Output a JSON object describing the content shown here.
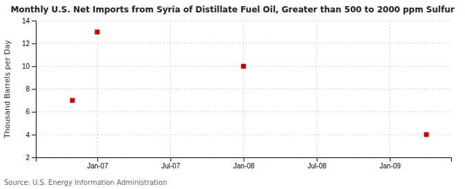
{
  "chart_data": {
    "type": "scatter",
    "title": "Monthly U.S. Net Imports from Syria of Distillate Fuel Oil, Greater than 500 to 2000 ppm Sulfur",
    "y_label": "Thousand Barrels per Day",
    "source": "Source: U.S. Energy Information Administration",
    "x": [
      2006.83,
      2007.0,
      2008.0,
      2009.25
    ],
    "values": [
      7,
      13,
      10,
      4
    ],
    "color": "#cc0000",
    "marker": "square",
    "xlim": [
      2006.58,
      2009.42
    ],
    "xticks": [
      {
        "value": 2007.0,
        "label": "Jan-07"
      },
      {
        "value": 2007.5,
        "label": "Jul-07"
      },
      {
        "value": 2008.0,
        "label": "Jan-08"
      },
      {
        "value": 2008.5,
        "label": "Jul-08"
      },
      {
        "value": 2009.0,
        "label": "Jan-09"
      }
    ],
    "ylim": [
      2,
      14
    ],
    "yticks": [
      2,
      4,
      6,
      8,
      10,
      12,
      14
    ],
    "grid": true
  }
}
